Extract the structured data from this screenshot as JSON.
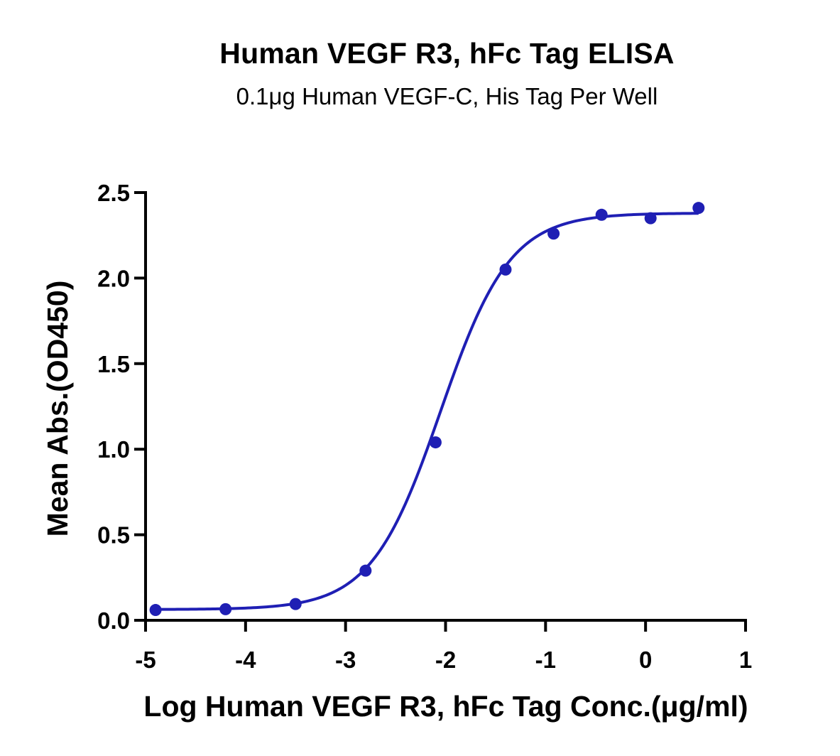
{
  "chart_data": {
    "type": "scatter",
    "title": "Human VEGF R3, hFc Tag ELISA",
    "subtitle": "0.1μg Human VEGF-C, His Tag Per Well",
    "xlabel": "Log Human VEGF R3, hFc Tag Conc.(μg/ml)",
    "ylabel": "Mean Abs.(OD450)",
    "xlim": [
      -5,
      1
    ],
    "ylim": [
      0,
      2.5
    ],
    "xticks": [
      "-5",
      "-4",
      "-3",
      "-2",
      "-1",
      "0",
      "1"
    ],
    "yticks": [
      "0.0",
      "0.5",
      "1.0",
      "1.5",
      "2.0",
      "2.5"
    ],
    "grid": false,
    "color": "#1f1fb4",
    "series": [
      {
        "x": [
          -4.9,
          -4.2,
          -3.5,
          -2.8,
          -2.1,
          -1.4,
          -0.92,
          -0.44,
          0.05,
          0.53
        ],
        "y": [
          0.06,
          0.065,
          0.095,
          0.29,
          1.04,
          2.05,
          2.26,
          2.37,
          2.35,
          2.41
        ]
      }
    ],
    "fit": {
      "type": "4PL",
      "bottom": 0.063,
      "top": 2.38,
      "log_ec50": -2.05,
      "hill": 1.25
    }
  }
}
